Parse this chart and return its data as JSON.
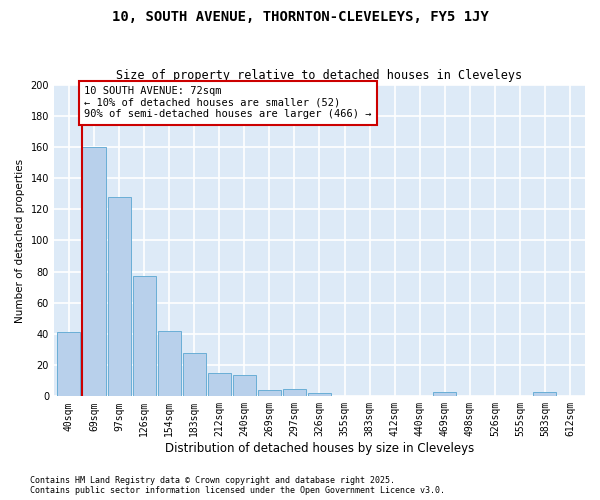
{
  "title": "10, SOUTH AVENUE, THORNTON-CLEVELEYS, FY5 1JY",
  "subtitle": "Size of property relative to detached houses in Cleveleys",
  "xlabel": "Distribution of detached houses by size in Cleveleys",
  "ylabel": "Number of detached properties",
  "categories": [
    "40sqm",
    "69sqm",
    "97sqm",
    "126sqm",
    "154sqm",
    "183sqm",
    "212sqm",
    "240sqm",
    "269sqm",
    "297sqm",
    "326sqm",
    "355sqm",
    "383sqm",
    "412sqm",
    "440sqm",
    "469sqm",
    "498sqm",
    "526sqm",
    "555sqm",
    "583sqm",
    "612sqm"
  ],
  "values": [
    41,
    160,
    128,
    77,
    42,
    28,
    15,
    14,
    4,
    5,
    2,
    0,
    0,
    0,
    0,
    3,
    0,
    0,
    0,
    3,
    0
  ],
  "bar_color": "#b8d0eb",
  "bar_edge_color": "#6aaed6",
  "annotation_box_color": "#ffffff",
  "annotation_box_edge": "#cc0000",
  "vline_color": "#cc0000",
  "vline_x_idx": 1,
  "annotation_text": "10 SOUTH AVENUE: 72sqm\n← 10% of detached houses are smaller (52)\n90% of semi-detached houses are larger (466) →",
  "ylim": [
    0,
    200
  ],
  "yticks": [
    0,
    20,
    40,
    60,
    80,
    100,
    120,
    140,
    160,
    180,
    200
  ],
  "plot_bg_color": "#ddeaf7",
  "fig_bg_color": "#ffffff",
  "grid_color": "#ffffff",
  "footer_line1": "Contains HM Land Registry data © Crown copyright and database right 2025.",
  "footer_line2": "Contains public sector information licensed under the Open Government Licence v3.0.",
  "title_fontsize": 10,
  "subtitle_fontsize": 8.5,
  "xlabel_fontsize": 8.5,
  "ylabel_fontsize": 7.5,
  "tick_fontsize": 7,
  "annot_fontsize": 7.5,
  "footer_fontsize": 6
}
